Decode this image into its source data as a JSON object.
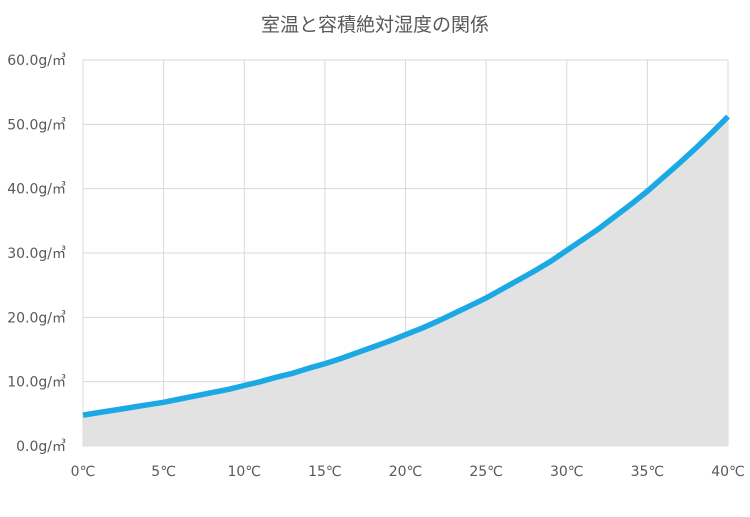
{
  "chart_data": {
    "type": "area",
    "title": "室温と容積絶対湿度の関係",
    "xlabel": "",
    "ylabel": "",
    "x_ticks": [
      "0℃",
      "5℃",
      "10℃",
      "15℃",
      "20℃",
      "25℃",
      "30℃",
      "35℃",
      "40℃"
    ],
    "y_ticks": [
      "0.0g/㎥",
      "10.0g/㎥",
      "20.0g/㎥",
      "30.0g/㎥",
      "40.0g/㎥",
      "50.0g/㎥",
      "60.0g/㎥"
    ],
    "xlim": [
      0,
      40
    ],
    "ylim": [
      0,
      60
    ],
    "grid": true,
    "legend": "none",
    "series": [
      {
        "x": [
          0,
          1,
          2,
          3,
          4,
          5,
          6,
          7,
          8,
          9,
          10,
          11,
          12,
          13,
          14,
          15,
          16,
          17,
          18,
          19,
          20,
          21,
          22,
          23,
          24,
          25,
          26,
          27,
          28,
          29,
          30,
          31,
          32,
          33,
          34,
          35,
          36,
          37,
          38,
          39,
          40
        ],
        "values": [
          4.8,
          5.2,
          5.6,
          6.0,
          6.4,
          6.8,
          7.3,
          7.8,
          8.3,
          8.8,
          9.4,
          10.0,
          10.7,
          11.3,
          12.1,
          12.8,
          13.6,
          14.5,
          15.4,
          16.3,
          17.3,
          18.3,
          19.4,
          20.6,
          21.8,
          23.0,
          24.4,
          25.8,
          27.2,
          28.7,
          30.4,
          32.1,
          33.8,
          35.7,
          37.6,
          39.6,
          41.8,
          44.0,
          46.3,
          48.7,
          51.2
        ],
        "line_color": "#1BA9E6",
        "fill_color": "#E2E2E2"
      }
    ]
  }
}
